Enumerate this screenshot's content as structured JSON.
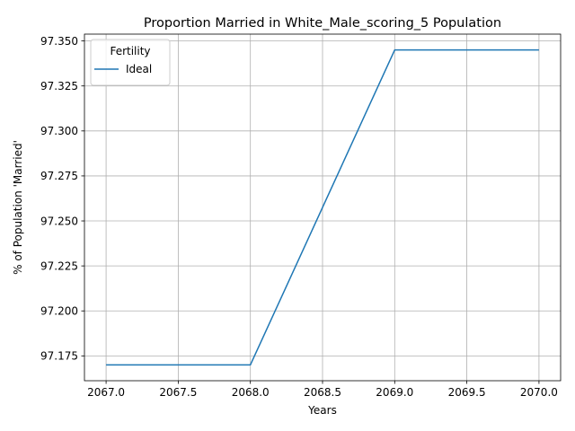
{
  "chart_data": {
    "type": "line",
    "title": "Proportion Married in White_Male_scoring_5 Population",
    "xlabel": "Years",
    "ylabel": "% of Population 'Married'",
    "xlim": [
      2066.85,
      2070.15
    ],
    "ylim": [
      97.1612,
      97.3538
    ],
    "xticks": [
      2067.0,
      2067.5,
      2068.0,
      2068.5,
      2069.0,
      2069.5,
      2070.0
    ],
    "xtick_labels": [
      "2067.0",
      "2067.5",
      "2068.0",
      "2068.5",
      "2069.0",
      "2069.5",
      "2070.0"
    ],
    "yticks": [
      97.175,
      97.2,
      97.225,
      97.25,
      97.275,
      97.3,
      97.325,
      97.35
    ],
    "ytick_labels": [
      "97.175",
      "97.200",
      "97.225",
      "97.250",
      "97.275",
      "97.300",
      "97.325",
      "97.350"
    ],
    "grid": true,
    "legend": {
      "title": "Fertility",
      "placement": "upper-left"
    },
    "x": [
      2067,
      2068,
      2069,
      2070
    ],
    "series": [
      {
        "name": "Ideal",
        "color": "#1f77b4",
        "values": [
          97.17,
          97.17,
          97.345,
          97.345
        ]
      }
    ]
  }
}
